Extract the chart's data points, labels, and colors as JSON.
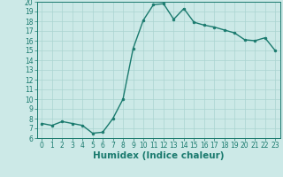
{
  "x": [
    0,
    1,
    2,
    3,
    4,
    5,
    6,
    7,
    8,
    9,
    10,
    11,
    12,
    13,
    14,
    15,
    16,
    17,
    18,
    19,
    20,
    21,
    22,
    23
  ],
  "y": [
    7.5,
    7.3,
    7.7,
    7.5,
    7.3,
    6.5,
    6.6,
    8.0,
    10.0,
    15.2,
    18.1,
    19.7,
    19.8,
    18.2,
    19.3,
    17.9,
    17.6,
    17.4,
    17.1,
    16.8,
    16.1,
    16.0,
    16.3,
    15.0
  ],
  "line_color": "#1a7a6e",
  "marker": "o",
  "marker_size": 2.0,
  "line_width": 1.0,
  "bg_color": "#cce9e7",
  "grid_color": "#aad4d1",
  "tick_color": "#1a7a6e",
  "xlabel": "Humidex (Indice chaleur)",
  "xlabel_fontsize": 7.5,
  "tick_fontsize": 5.5,
  "ylim": [
    6,
    20
  ],
  "xlim": [
    -0.5,
    23.5
  ],
  "yticks": [
    6,
    7,
    8,
    9,
    10,
    11,
    12,
    13,
    14,
    15,
    16,
    17,
    18,
    19,
    20
  ],
  "xticks": [
    0,
    1,
    2,
    3,
    4,
    5,
    6,
    7,
    8,
    9,
    10,
    11,
    12,
    13,
    14,
    15,
    16,
    17,
    18,
    19,
    20,
    21,
    22,
    23
  ]
}
